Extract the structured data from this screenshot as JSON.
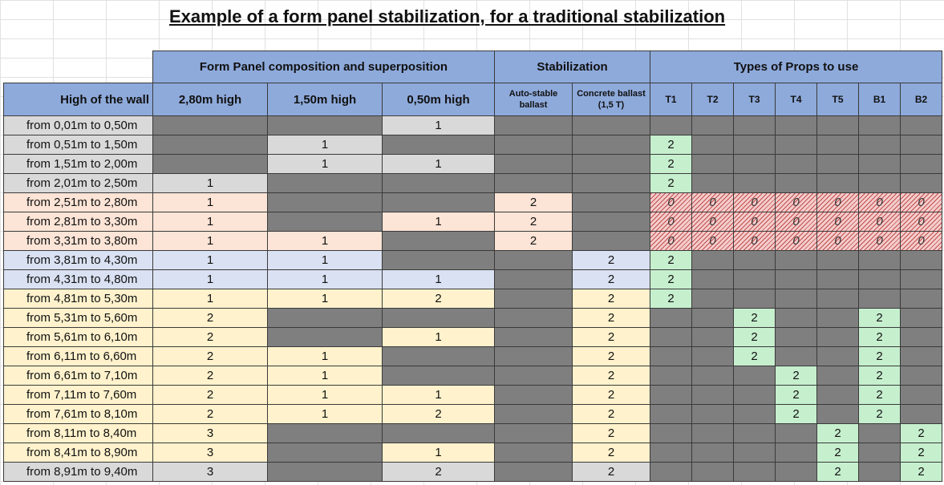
{
  "title": "Example of a form panel stabilization, for a traditional stabilization ",
  "headers": {
    "form_panel": "Form Panel composition and superposition",
    "stabilization": "Stabilization",
    "props": "Types of Props to use",
    "wall": "High of the wall",
    "p280": "2,80m high",
    "p150": "1,50m high",
    "p050": "0,50m high",
    "autostable_1": "Auto-stable",
    "autostable_2": "ballast",
    "concrete_1": "Concrete ballast",
    "concrete_2": "(1,5 T)",
    "props_list": [
      "T1",
      "T2",
      "T3",
      "T4",
      "T5",
      "B1",
      "B2"
    ]
  },
  "rows": [
    {
      "label": "from 0,01m to 0,50m",
      "c280": "",
      "c150": "",
      "c050": "1",
      "auto": "",
      "conc": "",
      "props": [
        "",
        "",
        "",
        "",
        "",
        "",
        ""
      ]
    },
    {
      "label": "from 0,51m to 1,50m",
      "c280": "",
      "c150": "1",
      "c050": "",
      "auto": "",
      "conc": "",
      "props": [
        "2",
        "",
        "",
        "",
        "",
        "",
        ""
      ]
    },
    {
      "label": "from 1,51m to 2,00m",
      "c280": "",
      "c150": "1",
      "c050": "1",
      "auto": "",
      "conc": "",
      "props": [
        "2",
        "",
        "",
        "",
        "",
        "",
        ""
      ]
    },
    {
      "label": "from 2,01m to 2,50m",
      "c280": "1",
      "c150": "",
      "c050": "",
      "auto": "",
      "conc": "",
      "props": [
        "2",
        "",
        "",
        "",
        "",
        "",
        ""
      ]
    },
    {
      "label": "from 2,51m to 2,80m",
      "c280": "1",
      "c150": "",
      "c050": "",
      "auto": "2",
      "conc": "",
      "props": [
        "0",
        "0",
        "0",
        "0",
        "0",
        "0",
        "0"
      ]
    },
    {
      "label": "from 2,81m to 3,30m",
      "c280": "1",
      "c150": "",
      "c050": "1",
      "auto": "2",
      "conc": "",
      "props": [
        "0",
        "0",
        "0",
        "0",
        "0",
        "0",
        "0"
      ]
    },
    {
      "label": "from 3,31m to 3,80m",
      "c280": "1",
      "c150": "1",
      "c050": "",
      "auto": "2",
      "conc": "",
      "props": [
        "0",
        "0",
        "0",
        "0",
        "0",
        "0",
        "0"
      ]
    },
    {
      "label": "from 3,81m to 4,30m",
      "c280": "1",
      "c150": "1",
      "c050": "",
      "auto": "",
      "conc": "2",
      "props": [
        "2",
        "",
        "",
        "",
        "",
        "",
        ""
      ]
    },
    {
      "label": "from 4,31m to 4,80m",
      "c280": "1",
      "c150": "1",
      "c050": "1",
      "auto": "",
      "conc": "2",
      "props": [
        "2",
        "",
        "",
        "",
        "",
        "",
        ""
      ]
    },
    {
      "label": "from 4,81m to 5,30m",
      "c280": "1",
      "c150": "1",
      "c050": "2",
      "auto": "",
      "conc": "2",
      "props": [
        "2",
        "",
        "",
        "",
        "",
        "",
        ""
      ]
    },
    {
      "label": "from 5,31m to 5,60m",
      "c280": "2",
      "c150": "",
      "c050": "",
      "auto": "",
      "conc": "2",
      "props": [
        "",
        "",
        "2",
        "",
        "",
        "2",
        ""
      ]
    },
    {
      "label": "from 5,61m to 6,10m",
      "c280": "2",
      "c150": "",
      "c050": "1",
      "auto": "",
      "conc": "2",
      "props": [
        "",
        "",
        "2",
        "",
        "",
        "2",
        ""
      ]
    },
    {
      "label": "from 6,11m to 6,60m",
      "c280": "2",
      "c150": "1",
      "c050": "",
      "auto": "",
      "conc": "2",
      "props": [
        "",
        "",
        "2",
        "",
        "",
        "2",
        ""
      ]
    },
    {
      "label": "from 6,61m to 7,10m",
      "c280": "2",
      "c150": "1",
      "c050": "",
      "auto": "",
      "conc": "2",
      "props": [
        "",
        "",
        "",
        "2",
        "",
        "2",
        ""
      ]
    },
    {
      "label": "from 7,11m to 7,60m",
      "c280": "2",
      "c150": "1",
      "c050": "1",
      "auto": "",
      "conc": "2",
      "props": [
        "",
        "",
        "",
        "2",
        "",
        "2",
        ""
      ]
    },
    {
      "label": "from 7,61m to 8,10m",
      "c280": "2",
      "c150": "1",
      "c050": "2",
      "auto": "",
      "conc": "2",
      "props": [
        "",
        "",
        "",
        "2",
        "",
        "2",
        ""
      ]
    },
    {
      "label": "from 8,11m to 8,40m",
      "c280": "3",
      "c150": "",
      "c050": "",
      "auto": "",
      "conc": "2",
      "props": [
        "",
        "",
        "",
        "",
        "2",
        "",
        "2"
      ]
    },
    {
      "label": "from 8,41m to 8,90m",
      "c280": "3",
      "c150": "",
      "c050": "1",
      "auto": "",
      "conc": "2",
      "props": [
        "",
        "",
        "",
        "",
        "2",
        "",
        "2"
      ]
    },
    {
      "label": "from 8,91m to 9,40m",
      "c280": "3",
      "c150": "",
      "c050": "2",
      "auto": "",
      "conc": "2",
      "props": [
        "",
        "",
        "",
        "",
        "2",
        "",
        "2"
      ]
    }
  ]
}
